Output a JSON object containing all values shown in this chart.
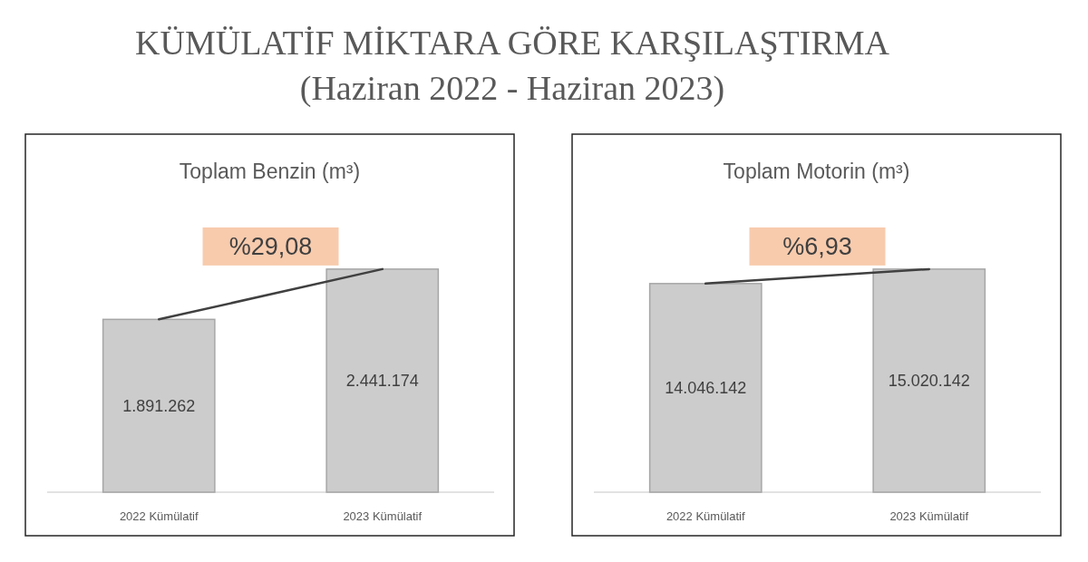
{
  "chart_data": [
    {
      "type": "other",
      "title": "KÜMÜLATİF MİKTARA GÖRE KARŞILAŞTIRMA",
      "subtitle": "(Haziran 2022 - Haziran 2023)"
    },
    {
      "type": "bar",
      "title": "Toplam Benzin (m³)",
      "categories": [
        "2022 Kümülatif",
        "2023 Kümülatif"
      ],
      "series": [
        {
          "type": "bar",
          "color": "#cccccc",
          "values": [
            1891262,
            2441174
          ],
          "value_labels": [
            "1.891.262",
            "2.441.174"
          ]
        },
        {
          "type": "line",
          "color": "#404040",
          "values": [
            1891262,
            2441174
          ]
        }
      ],
      "annotations": [
        "%29,08"
      ]
    },
    {
      "type": "bar",
      "title": "Toplam Motorin (m³)",
      "categories": [
        "2022 Kümülatif",
        "2023 Kümülatif"
      ],
      "series": [
        {
          "type": "bar",
          "color": "#cccccc",
          "values": [
            14046142,
            15020142
          ],
          "value_labels": [
            "14.046.142",
            "15.020.142"
          ]
        },
        {
          "type": "line",
          "color": "#404040",
          "values": [
            14046142,
            15020142
          ]
        }
      ],
      "annotations": [
        "%6,93"
      ]
    }
  ]
}
